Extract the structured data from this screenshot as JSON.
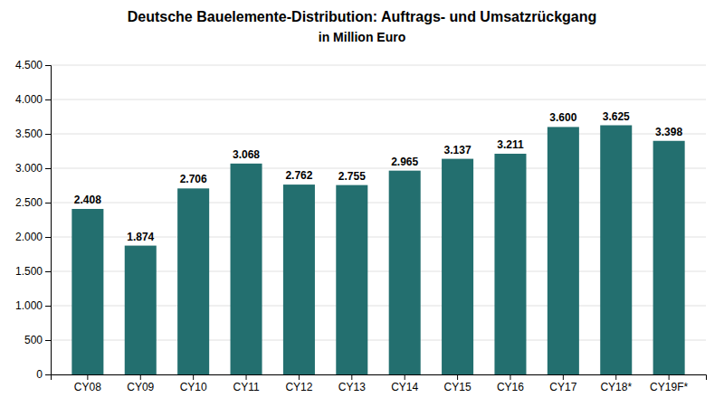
{
  "chart_data": {
    "type": "bar",
    "title": "Deutsche Bauelemente-Distribution: Auftrags- und Umsatzrückgang",
    "subtitle": "in Million Euro",
    "categories": [
      "CY08",
      "CY09",
      "CY10",
      "CY11",
      "CY12",
      "CY13",
      "CY14",
      "CY15",
      "CY16",
      "CY17",
      "CY18*",
      "CY19F*"
    ],
    "values": [
      2.408,
      1.874,
      2.706,
      3.068,
      2.762,
      2.755,
      2.965,
      3.137,
      3.211,
      3.6,
      3.625,
      3.398
    ],
    "value_labels": [
      "2.408",
      "1.874",
      "2.706",
      "3.068",
      "2.762",
      "2.755",
      "2.965",
      "3.137",
      "3.211",
      "3.600",
      "3.625",
      "3.398"
    ],
    "data_labels": true,
    "color": "#236f6f",
    "ylim": [
      0,
      4.5
    ],
    "yticks": [
      0,
      {
        "value": 0.5,
        "label": "500"
      },
      {
        "value": 1.0,
        "label": "1.000"
      },
      {
        "value": 1.5,
        "label": "1.500"
      },
      {
        "value": 2.0,
        "label": "2.000"
      },
      {
        "value": 2.5,
        "label": "2.500"
      },
      {
        "value": 3.0,
        "label": "3.000"
      },
      {
        "value": 3.5,
        "label": "3.500"
      },
      {
        "value": 4.0,
        "label": "4.000"
      },
      {
        "value": 4.5,
        "label": "4.500"
      }
    ],
    "grid": true
  }
}
